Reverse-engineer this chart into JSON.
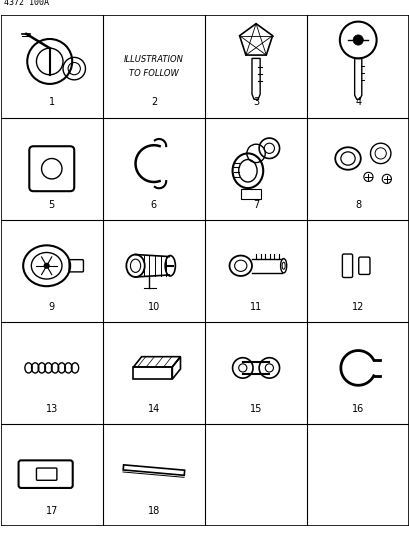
{
  "title": "4372 100A",
  "background_color": "#ffffff",
  "grid_color": "#000000",
  "text_color": "#000000",
  "num_cols": 4,
  "num_rows": 5,
  "cell_labels": [
    "1",
    "2",
    "3",
    "4",
    "5",
    "6",
    "7",
    "8",
    "9",
    "10",
    "11",
    "12",
    "13",
    "14",
    "15",
    "16",
    "17",
    "18"
  ],
  "cell2_text": [
    "ILLUSTRATION",
    "TO FOLLOW"
  ],
  "label_fontsize": 7,
  "title_fontsize": 6,
  "fig_width": 4.1,
  "fig_height": 5.33
}
